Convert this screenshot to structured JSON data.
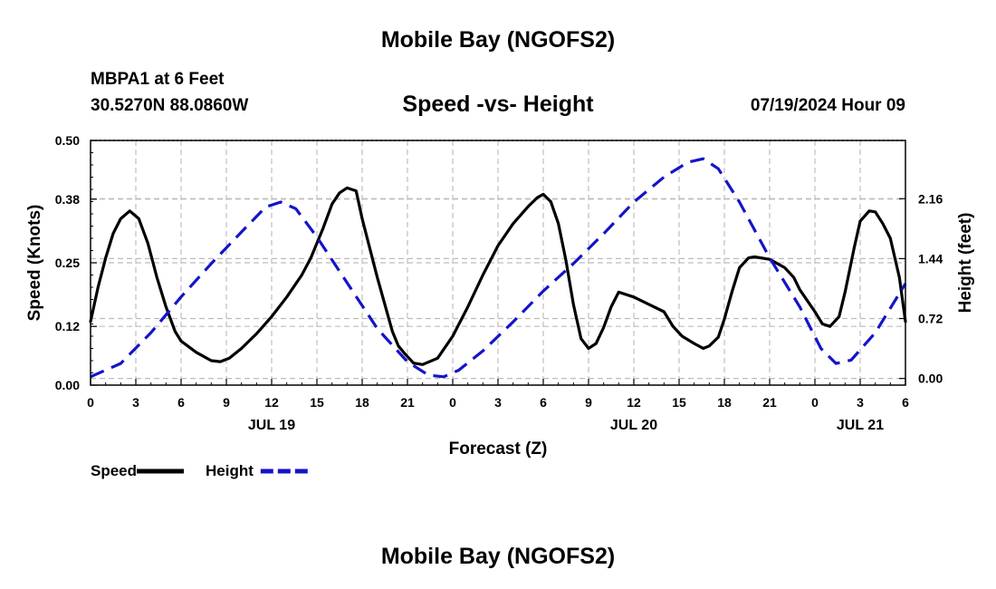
{
  "header": {
    "title": "Mobile Bay (NGOFS2)",
    "station": "MBPA1 at 6 Feet",
    "coords": "30.5270N  88.0860W",
    "subtitle": "Speed -vs- Height",
    "datetime": "07/19/2024 Hour 09",
    "footer_title": "Mobile Bay (NGOFS2)"
  },
  "chart_data": {
    "type": "line",
    "title": "Speed -vs- Height",
    "xlabel": "Forecast (Z)",
    "ylabel": "Speed (Knots)",
    "y2label": "Height (feet)",
    "x_range_hours": [
      0,
      54
    ],
    "x_tick_labels": [
      "0",
      "3",
      "6",
      "9",
      "12",
      "15",
      "18",
      "21",
      "0",
      "3",
      "6",
      "9",
      "12",
      "15",
      "18",
      "21",
      "0",
      "3",
      "6"
    ],
    "day_labels": [
      {
        "label": "JUL 19",
        "hour": 12
      },
      {
        "label": "JUL 20",
        "hour": 36
      },
      {
        "label": "JUL 21",
        "hour": 51
      }
    ],
    "ylim": [
      0,
      0.5
    ],
    "y_ticks": [
      "0.00",
      "0.12",
      "0.25",
      "0.38",
      "0.50"
    ],
    "y2lim": [
      -0.08,
      2.86
    ],
    "y2_ticks": [
      "0.00",
      "0.72",
      "1.44",
      "2.16"
    ],
    "grid": true,
    "legend": "bottom-left",
    "series": [
      {
        "name": "Speed",
        "axis": "left",
        "color": "#000000",
        "style": "solid",
        "x": [
          0,
          0.5,
          1,
          1.5,
          2,
          2.6,
          3.2,
          3.8,
          4.4,
          5,
          5.6,
          6,
          7,
          8,
          8.6,
          9.2,
          10,
          11,
          12,
          13,
          14,
          14.6,
          15,
          15.4,
          16,
          16.5,
          17,
          17.6,
          18,
          19,
          20,
          20.4,
          20.8,
          21.4,
          22,
          23,
          24,
          25,
          26,
          27,
          28,
          29,
          29.6,
          30,
          30.5,
          31,
          31.5,
          32,
          32.5,
          33,
          33.5,
          34,
          34.5,
          35,
          36,
          37,
          38,
          38.6,
          39.2,
          40,
          40.6,
          41,
          41.6,
          42,
          42.5,
          43,
          43.6,
          44,
          45,
          46,
          46.6,
          47,
          48,
          48.5,
          49,
          49.6,
          50,
          50.6,
          51,
          51.6,
          52,
          52.5,
          53,
          53.6,
          54
        ],
        "values": [
          0.13,
          0.2,
          0.26,
          0.31,
          0.34,
          0.356,
          0.34,
          0.29,
          0.22,
          0.16,
          0.11,
          0.09,
          0.067,
          0.05,
          0.048,
          0.055,
          0.075,
          0.105,
          0.14,
          0.18,
          0.225,
          0.26,
          0.29,
          0.32,
          0.37,
          0.393,
          0.403,
          0.397,
          0.34,
          0.22,
          0.11,
          0.08,
          0.065,
          0.045,
          0.042,
          0.055,
          0.1,
          0.16,
          0.225,
          0.285,
          0.33,
          0.365,
          0.383,
          0.39,
          0.375,
          0.33,
          0.255,
          0.165,
          0.095,
          0.075,
          0.085,
          0.118,
          0.16,
          0.19,
          0.18,
          0.165,
          0.15,
          0.12,
          0.1,
          0.085,
          0.075,
          0.08,
          0.098,
          0.135,
          0.19,
          0.24,
          0.26,
          0.262,
          0.257,
          0.24,
          0.22,
          0.195,
          0.15,
          0.125,
          0.12,
          0.14,
          0.19,
          0.28,
          0.335,
          0.356,
          0.354,
          0.33,
          0.3,
          0.22,
          0.13
        ]
      },
      {
        "name": "Height",
        "axis": "right",
        "color": "#1414c8",
        "style": "dashed",
        "x": [
          0,
          2,
          4,
          6,
          8,
          10,
          11.6,
          12.6,
          13.6,
          15,
          17,
          19,
          21,
          22.4,
          23.4,
          24.4,
          26,
          28,
          30,
          32,
          34,
          36,
          38,
          39.6,
          40.6,
          41.6,
          43,
          45,
          47,
          48.4,
          49.4,
          50.4,
          52,
          54
        ],
        "values": [
          0.02,
          0.18,
          0.55,
          0.98,
          1.38,
          1.76,
          2.06,
          2.12,
          2.04,
          1.7,
          1.15,
          0.6,
          0.2,
          0.04,
          0.02,
          0.1,
          0.33,
          0.68,
          1.05,
          1.38,
          1.74,
          2.12,
          2.42,
          2.6,
          2.64,
          2.52,
          2.12,
          1.45,
          0.86,
          0.36,
          0.18,
          0.22,
          0.55,
          1.14
        ]
      }
    ]
  }
}
